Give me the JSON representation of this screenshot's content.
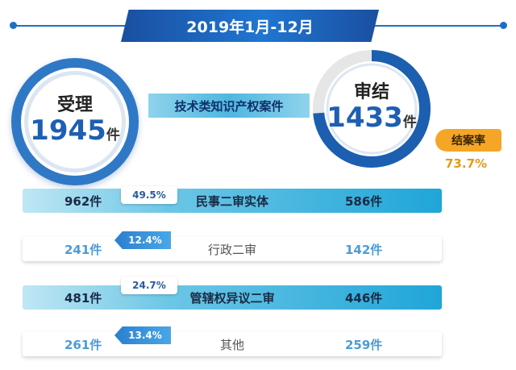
{
  "header": {
    "title": "2019年1月-12月"
  },
  "accepted": {
    "title": "受理",
    "count": "1945",
    "unit": "件"
  },
  "closed": {
    "title": "审结",
    "count": "1433",
    "unit": "件"
  },
  "center_label": "技术类知识产权案件",
  "closure_rate": {
    "label": "结案率",
    "value": "73.7%",
    "fraction": 0.737
  },
  "rows": [
    {
      "label": "民事二审实体",
      "accepted": "962件",
      "closed": "586件",
      "percent": "49.5%",
      "style": "dark"
    },
    {
      "label": "行政二审",
      "accepted": "241件",
      "closed": "142件",
      "percent": "12.4%",
      "style": "light"
    },
    {
      "label": "管辖权异议二审",
      "accepted": "481件",
      "closed": "446件",
      "percent": "24.7%",
      "style": "dark"
    },
    {
      "label": "其他",
      "accepted": "261件",
      "closed": "259件",
      "percent": "13.4%",
      "style": "light"
    }
  ],
  "colors": {
    "primary": "#1d6fc4",
    "accent": "#f5a626",
    "row_dark": "#1fa6d8"
  }
}
